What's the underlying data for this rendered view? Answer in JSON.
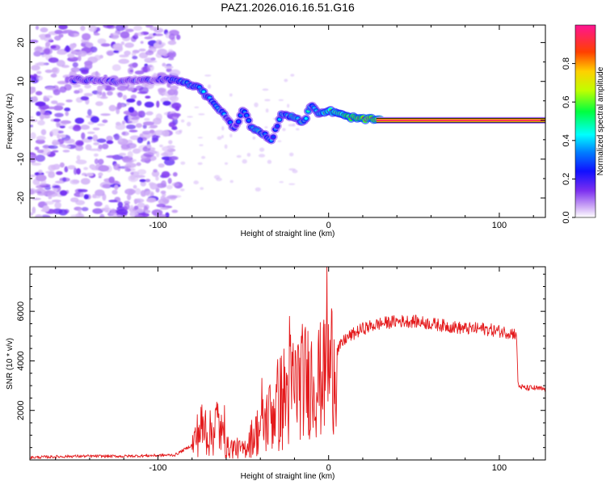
{
  "title": "PAZ1.2026.016.16.51.G16",
  "chart_data": [
    {
      "type": "heatmap",
      "xlabel": "Height of straight line (km)",
      "ylabel": "Frequency (Hz)",
      "xlim": [
        -175,
        127
      ],
      "ylim": [
        -25,
        24.5
      ],
      "xticks": [
        -100,
        0,
        100
      ],
      "xtick_labels": [
        "-100",
        "0",
        "100"
      ],
      "yticks": [
        -20,
        -10,
        0,
        10,
        20
      ],
      "ytick_labels": [
        "-20",
        "-10",
        "0",
        "10",
        "20"
      ],
      "colorbar": {
        "label": "Normalized spectral amplitude",
        "range": [
          0,
          1
        ],
        "ticks": [
          0.0,
          0.2,
          0.4,
          0.6,
          0.8
        ],
        "tick_labels": [
          "0.0",
          "0.2",
          "0.4",
          "0.6",
          "0.8"
        ],
        "colormap": [
          "#ffffff",
          "#8a2be2",
          "#0000ff",
          "#00ffff",
          "#00ff00",
          "#ffff00",
          "#ff8000",
          "#ff0000",
          "#ff1493"
        ]
      },
      "noise_region_x": [
        -175,
        -88
      ],
      "ridge": [
        {
          "x": -150,
          "f": 10.5,
          "a": 0.25
        },
        {
          "x": -120,
          "f": 10.0,
          "a": 0.2
        },
        {
          "x": -95,
          "f": 10.5,
          "a": 0.25
        },
        {
          "x": -85,
          "f": 10.0,
          "a": 0.4
        },
        {
          "x": -80,
          "f": 9.0,
          "a": 0.35
        },
        {
          "x": -75,
          "f": 8.0,
          "a": 0.4
        },
        {
          "x": -70,
          "f": 5.5,
          "a": 0.35
        },
        {
          "x": -65,
          "f": 3.5,
          "a": 0.4
        },
        {
          "x": -60,
          "f": 1.0,
          "a": 0.3
        },
        {
          "x": -55,
          "f": -2.5,
          "a": 0.25
        },
        {
          "x": -50,
          "f": 3.0,
          "a": 0.3
        },
        {
          "x": -45,
          "f": -2.0,
          "a": 0.4
        },
        {
          "x": -40,
          "f": -3.0,
          "a": 0.45
        },
        {
          "x": -33,
          "f": -5.0,
          "a": 0.3
        },
        {
          "x": -28,
          "f": 1.5,
          "a": 0.35
        },
        {
          "x": -20,
          "f": 1.0,
          "a": 0.45
        },
        {
          "x": -15,
          "f": -1.0,
          "a": 0.45
        },
        {
          "x": -10,
          "f": 4.0,
          "a": 0.4
        },
        {
          "x": -5,
          "f": 1.5,
          "a": 0.5
        },
        {
          "x": 0,
          "f": 2.5,
          "a": 0.6
        },
        {
          "x": 10,
          "f": 1.0,
          "a": 0.7
        },
        {
          "x": 20,
          "f": 0.3,
          "a": 0.85
        },
        {
          "x": 40,
          "f": 0.0,
          "a": 0.95
        },
        {
          "x": 80,
          "f": 0.0,
          "a": 0.95
        },
        {
          "x": 127,
          "f": 0.0,
          "a": 0.95
        }
      ]
    },
    {
      "type": "line",
      "xlabel": "Height of straight line (km)",
      "ylabel": "SNR (10 * v/v)",
      "xlim": [
        -175,
        127
      ],
      "ylim": [
        0,
        7800
      ],
      "xticks": [
        -100,
        0,
        100
      ],
      "xtick_labels": [
        "-100",
        "0",
        "100"
      ],
      "yticks": [
        2000,
        4000,
        6000
      ],
      "ytick_labels": [
        "2000",
        "4000",
        "6000"
      ],
      "line_color": "#e41a1c",
      "series": [
        {
          "name": "SNR",
          "x": [
            -175,
            -150,
            -120,
            -90,
            -80,
            -75,
            -70,
            -65,
            -60,
            -55,
            -50,
            -45,
            -40,
            -35,
            -30,
            -25,
            -20,
            -15,
            -10,
            -5,
            -2,
            0,
            5,
            10,
            15,
            20,
            30,
            40,
            50,
            60,
            70,
            80,
            90,
            100,
            110,
            111,
            115,
            120,
            127
          ],
          "y": [
            100,
            150,
            150,
            200,
            600,
            1300,
            1000,
            1500,
            500,
            500,
            400,
            900,
            1300,
            1700,
            2200,
            2600,
            3000,
            3200,
            3300,
            3200,
            3300,
            3600,
            4400,
            4900,
            5100,
            5300,
            5500,
            5600,
            5600,
            5500,
            5400,
            5300,
            5300,
            5200,
            5100,
            3000,
            2900,
            2900,
            2850
          ],
          "spikes": [
            {
              "x": -72,
              "y": 2000
            },
            {
              "x": -66,
              "y": 2100
            },
            {
              "x": -61,
              "y": 2200
            },
            {
              "x": -39,
              "y": 3300
            },
            {
              "x": -35,
              "y": 2900
            },
            {
              "x": -31,
              "y": 2300
            },
            {
              "x": -23,
              "y": 5800
            },
            {
              "x": -18,
              "y": 4600
            },
            {
              "x": -12,
              "y": 5200
            },
            {
              "x": -6,
              "y": 4700
            },
            {
              "x": -3,
              "y": 5300
            },
            {
              "x": -1,
              "y": 7800
            }
          ]
        }
      ]
    }
  ]
}
